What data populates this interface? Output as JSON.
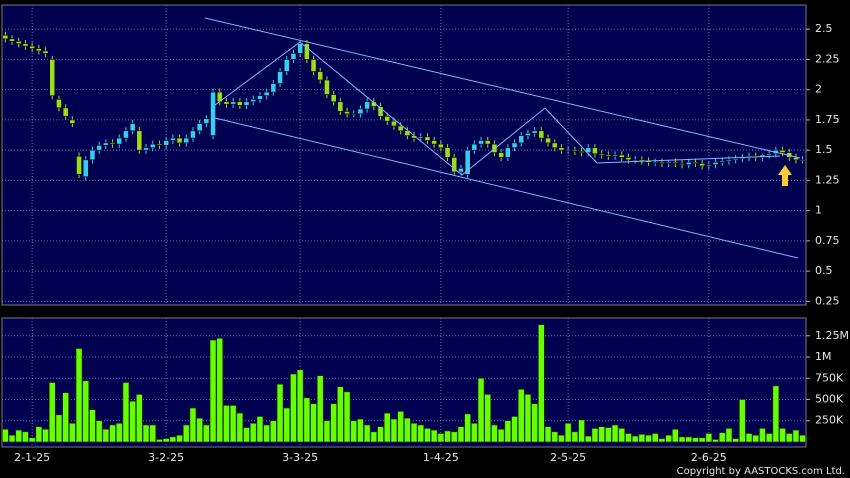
{
  "chart_data": [
    {
      "type": "candlestick",
      "categories": [
        null,
        null,
        null,
        null,
        "2-1-25",
        null,
        null,
        null,
        null,
        null,
        null,
        null,
        null,
        null,
        null,
        null,
        null,
        null,
        null,
        null,
        null,
        null,
        null,
        null,
        "3-2-25",
        null,
        null,
        null,
        null,
        null,
        null,
        null,
        null,
        null,
        null,
        null,
        null,
        null,
        null,
        null,
        null,
        null,
        null,
        null,
        "3-3-25",
        null,
        null,
        null,
        null,
        null,
        null,
        null,
        null,
        null,
        null,
        null,
        null,
        null,
        null,
        null,
        null,
        null,
        null,
        null,
        null,
        "1-4-25",
        null,
        null,
        null,
        null,
        null,
        null,
        null,
        null,
        null,
        null,
        null,
        null,
        null,
        null,
        null,
        null,
        null,
        null,
        "2-5-25",
        null,
        null,
        null,
        null,
        null,
        null,
        null,
        null,
        null,
        null,
        null,
        null,
        null,
        null,
        null,
        null,
        null,
        null,
        null,
        null,
        "2-6-25",
        null,
        null,
        null,
        null,
        null,
        null,
        null,
        null,
        null,
        null,
        null,
        null,
        null,
        null
      ],
      "open": [
        2.45,
        2.42,
        2.4,
        2.38,
        2.36,
        2.34,
        2.32,
        2.25,
        1.92,
        1.85,
        1.75,
        1.45,
        1.28,
        1.42,
        1.5,
        1.54,
        1.56,
        1.55,
        1.6,
        1.66,
        1.66,
        1.5,
        1.52,
        1.55,
        1.54,
        1.58,
        1.6,
        1.56,
        1.6,
        1.66,
        1.72,
        1.62,
        1.98,
        1.9,
        1.88,
        1.9,
        1.87,
        1.9,
        1.92,
        1.95,
        1.98,
        2.05,
        2.15,
        2.25,
        2.3,
        2.38,
        2.25,
        2.15,
        2.08,
        1.96,
        1.9,
        1.82,
        1.8,
        1.8,
        1.84,
        1.9,
        1.86,
        1.78,
        1.74,
        1.7,
        1.66,
        1.62,
        1.6,
        1.61,
        1.58,
        1.55,
        1.52,
        1.44,
        1.32,
        1.3,
        1.5,
        1.55,
        1.58,
        1.55,
        1.48,
        1.44,
        1.52,
        1.56,
        1.62,
        1.64,
        1.66,
        1.6,
        1.56,
        1.52,
        1.5,
        1.5,
        1.49,
        1.48,
        1.52,
        1.47,
        1.46,
        1.45,
        1.46,
        1.44,
        1.42,
        1.42,
        1.41,
        1.4,
        1.4,
        1.39,
        1.4,
        1.39,
        1.38,
        1.4,
        1.39,
        1.37,
        1.38,
        1.4,
        1.41,
        1.42,
        1.43,
        1.44,
        1.45,
        1.44,
        1.46,
        1.47,
        1.5,
        1.48,
        1.44,
        1.42
      ],
      "high": [
        2.48,
        2.45,
        2.43,
        2.41,
        2.39,
        2.37,
        2.35,
        2.28,
        1.95,
        1.88,
        1.78,
        1.48,
        1.45,
        1.53,
        1.57,
        1.59,
        1.59,
        1.63,
        1.69,
        1.75,
        1.69,
        1.55,
        1.58,
        1.58,
        1.61,
        1.63,
        1.63,
        1.63,
        1.69,
        1.75,
        1.79,
        2.01,
        2.01,
        1.93,
        1.93,
        1.93,
        1.93,
        1.95,
        1.98,
        2.01,
        2.08,
        2.18,
        2.28,
        2.33,
        2.41,
        2.41,
        2.28,
        2.18,
        2.11,
        1.99,
        1.93,
        1.85,
        1.83,
        1.87,
        1.93,
        1.93,
        1.89,
        1.81,
        1.77,
        1.73,
        1.69,
        1.65,
        1.64,
        1.64,
        1.61,
        1.58,
        1.55,
        1.47,
        1.38,
        1.53,
        1.58,
        1.61,
        1.61,
        1.58,
        1.51,
        1.55,
        1.59,
        1.65,
        1.67,
        1.69,
        1.69,
        1.63,
        1.59,
        1.55,
        1.53,
        1.53,
        1.52,
        1.55,
        1.55,
        1.5,
        1.49,
        1.49,
        1.49,
        1.47,
        1.45,
        1.45,
        1.44,
        1.43,
        1.43,
        1.42,
        1.43,
        1.42,
        1.43,
        1.43,
        1.42,
        1.41,
        1.43,
        1.44,
        1.45,
        1.46,
        1.47,
        1.48,
        1.48,
        1.47,
        1.49,
        1.53,
        1.53,
        1.51,
        1.47,
        1.45
      ],
      "low": [
        2.39,
        2.37,
        2.35,
        2.33,
        2.31,
        2.29,
        2.27,
        1.92,
        1.82,
        1.75,
        1.69,
        1.27,
        1.25,
        1.39,
        1.47,
        1.51,
        1.52,
        1.52,
        1.57,
        1.63,
        1.47,
        1.47,
        1.49,
        1.51,
        1.51,
        1.55,
        1.53,
        1.53,
        1.57,
        1.63,
        1.69,
        1.59,
        1.87,
        1.85,
        1.85,
        1.84,
        1.84,
        1.87,
        1.89,
        1.92,
        1.95,
        2.02,
        2.12,
        2.22,
        2.27,
        2.22,
        2.12,
        2.05,
        1.93,
        1.87,
        1.79,
        1.77,
        1.77,
        1.77,
        1.81,
        1.83,
        1.75,
        1.71,
        1.67,
        1.63,
        1.59,
        1.57,
        1.57,
        1.55,
        1.52,
        1.49,
        1.41,
        1.29,
        1.29,
        1.27,
        1.47,
        1.52,
        1.52,
        1.45,
        1.41,
        1.41,
        1.49,
        1.53,
        1.59,
        1.61,
        1.57,
        1.53,
        1.49,
        1.47,
        1.47,
        1.46,
        1.45,
        1.45,
        1.44,
        1.43,
        1.42,
        1.42,
        1.41,
        1.39,
        1.39,
        1.38,
        1.37,
        1.37,
        1.36,
        1.36,
        1.36,
        1.35,
        1.35,
        1.36,
        1.34,
        1.34,
        1.35,
        1.37,
        1.38,
        1.39,
        1.4,
        1.41,
        1.41,
        1.41,
        1.43,
        1.44,
        1.45,
        1.41,
        1.39,
        1.39
      ],
      "close": [
        2.42,
        2.4,
        2.38,
        2.36,
        2.34,
        2.32,
        2.3,
        1.95,
        1.85,
        1.78,
        1.72,
        1.3,
        1.42,
        1.5,
        1.54,
        1.56,
        1.55,
        1.6,
        1.66,
        1.72,
        1.5,
        1.52,
        1.55,
        1.54,
        1.58,
        1.6,
        1.56,
        1.6,
        1.66,
        1.72,
        1.76,
        1.98,
        1.9,
        1.88,
        1.9,
        1.87,
        1.9,
        1.92,
        1.95,
        1.98,
        2.05,
        2.15,
        2.25,
        2.3,
        2.38,
        2.25,
        2.15,
        2.08,
        1.96,
        1.9,
        1.82,
        1.8,
        1.8,
        1.84,
        1.9,
        1.86,
        1.78,
        1.74,
        1.7,
        1.66,
        1.62,
        1.6,
        1.61,
        1.58,
        1.55,
        1.52,
        1.44,
        1.32,
        1.35,
        1.5,
        1.55,
        1.58,
        1.55,
        1.48,
        1.44,
        1.52,
        1.56,
        1.62,
        1.64,
        1.66,
        1.6,
        1.56,
        1.52,
        1.5,
        1.5,
        1.49,
        1.48,
        1.52,
        1.47,
        1.46,
        1.45,
        1.46,
        1.44,
        1.42,
        1.42,
        1.41,
        1.4,
        1.4,
        1.39,
        1.4,
        1.39,
        1.38,
        1.4,
        1.39,
        1.37,
        1.38,
        1.4,
        1.41,
        1.42,
        1.43,
        1.44,
        1.45,
        1.44,
        1.46,
        1.47,
        1.5,
        1.48,
        1.44,
        1.42,
        1.42
      ],
      "up_color": "#33ccff",
      "down_color": "#99dd22",
      "ylim": [
        0.22,
        2.7
      ],
      "yticks": [
        2.5,
        2.25,
        2,
        1.75,
        1.5,
        1.25,
        1,
        0.75,
        0.5,
        0.25
      ],
      "grid": true
    },
    {
      "type": "bar",
      "values": [
        150000,
        80000,
        140000,
        120000,
        50000,
        180000,
        150000,
        700000,
        320000,
        580000,
        220000,
        1100000,
        720000,
        380000,
        250000,
        150000,
        200000,
        220000,
        700000,
        480000,
        560000,
        200000,
        200000,
        30000,
        40000,
        60000,
        80000,
        200000,
        400000,
        280000,
        200000,
        1200000,
        1220000,
        430000,
        430000,
        340000,
        170000,
        220000,
        300000,
        200000,
        250000,
        680000,
        400000,
        800000,
        850000,
        520000,
        450000,
        780000,
        250000,
        450000,
        650000,
        590000,
        250000,
        270000,
        200000,
        120000,
        180000,
        340000,
        270000,
        360000,
        280000,
        220000,
        200000,
        160000,
        140000,
        100000,
        130000,
        120000,
        180000,
        330000,
        220000,
        750000,
        560000,
        200000,
        150000,
        250000,
        300000,
        620000,
        560000,
        450000,
        1380000,
        180000,
        120000,
        80000,
        220000,
        120000,
        260000,
        70000,
        160000,
        180000,
        170000,
        200000,
        160000,
        100000,
        70000,
        90000,
        80000,
        100000,
        40000,
        80000,
        150000,
        60000,
        60000,
        50000,
        50000,
        100000,
        30000,
        110000,
        160000,
        40000,
        500000,
        100000,
        80000,
        160000,
        100000,
        660000,
        160000,
        100000,
        140000,
        80000
      ],
      "color": "#66ff00",
      "ylim": [
        -59000,
        1459000
      ],
      "yticks": [
        {
          "value": 1250000,
          "label": "1.25M"
        },
        {
          "value": 1000000,
          "label": "1M"
        },
        {
          "value": 750000,
          "label": "750K"
        },
        {
          "value": 500000,
          "label": "500K"
        },
        {
          "value": 250000,
          "label": "250K"
        }
      ],
      "grid": true
    }
  ],
  "copyright": "Copyright by AASTOCKS.com Ltd."
}
